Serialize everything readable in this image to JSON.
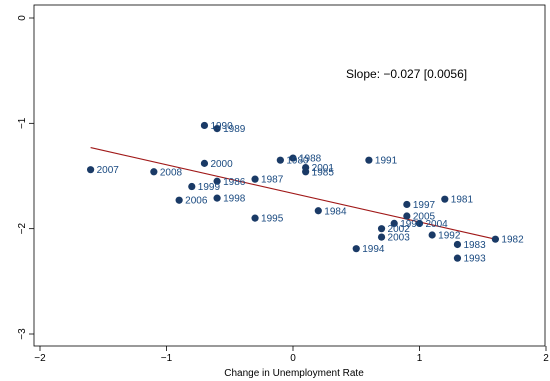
{
  "chart_data": {
    "type": "scatter",
    "title": "",
    "xlabel": "Change in Unemployment Rate",
    "ylabel": "",
    "xlim": [
      -2,
      2
    ],
    "ylim": [
      -3,
      0
    ],
    "xticks": [
      -2,
      -1,
      0,
      1,
      2
    ],
    "yticks": [
      0,
      -1,
      -2,
      -3
    ],
    "grid": false,
    "annotation": "Slope: −0.027 [0.0056]",
    "marker_color": "#1a3a66",
    "label_color": "#1a4a80",
    "fit_color": "#a01818",
    "fit_line": {
      "x": [
        -1.6,
        1.6
      ],
      "y": [
        -1.23,
        -2.1
      ]
    },
    "points": [
      {
        "label": "1981",
        "x": 1.2,
        "y": -1.72
      },
      {
        "label": "1982",
        "x": 1.6,
        "y": -2.1
      },
      {
        "label": "1983",
        "x": 1.3,
        "y": -2.15
      },
      {
        "label": "1984",
        "x": 0.2,
        "y": -1.83
      },
      {
        "label": "1985",
        "x": 0.1,
        "y": -1.46
      },
      {
        "label": "1986",
        "x": -0.6,
        "y": -1.55
      },
      {
        "label": "1987",
        "x": -0.3,
        "y": -1.53
      },
      {
        "label": "1988",
        "x": 0.0,
        "y": -1.33
      },
      {
        "label": "1989",
        "x": -0.6,
        "y": -1.05
      },
      {
        "label": "1990",
        "x": -0.7,
        "y": -1.02
      },
      {
        "label": "1991",
        "x": 0.6,
        "y": -1.35
      },
      {
        "label": "1992",
        "x": 1.1,
        "y": -2.06
      },
      {
        "label": "1993",
        "x": 1.3,
        "y": -2.28
      },
      {
        "label": "1994",
        "x": 0.5,
        "y": -2.19
      },
      {
        "label": "1995",
        "x": -0.3,
        "y": -1.9
      },
      {
        "label": "1996",
        "x": 0.8,
        "y": -1.95
      },
      {
        "label": "1997",
        "x": 0.9,
        "y": -1.77
      },
      {
        "label": "1998",
        "x": -0.6,
        "y": -1.71
      },
      {
        "label": "1999",
        "x": -0.8,
        "y": -1.6
      },
      {
        "label": "2000",
        "x": -0.7,
        "y": -1.38
      },
      {
        "label": "2001",
        "x": 0.1,
        "y": -1.42
      },
      {
        "label": "2002",
        "x": 0.7,
        "y": -2.0
      },
      {
        "label": "2003",
        "x": 0.7,
        "y": -2.08
      },
      {
        "label": "2004",
        "x": 1.0,
        "y": -1.95
      },
      {
        "label": "2005",
        "x": 0.9,
        "y": -1.88
      },
      {
        "label": "2006",
        "x": -0.9,
        "y": -1.73
      },
      {
        "label": "2007",
        "x": -1.6,
        "y": -1.44
      },
      {
        "label": "2008",
        "x": -1.1,
        "y": -1.46
      },
      {
        "label": "1980",
        "x": -0.1,
        "y": -1.35
      }
    ]
  }
}
